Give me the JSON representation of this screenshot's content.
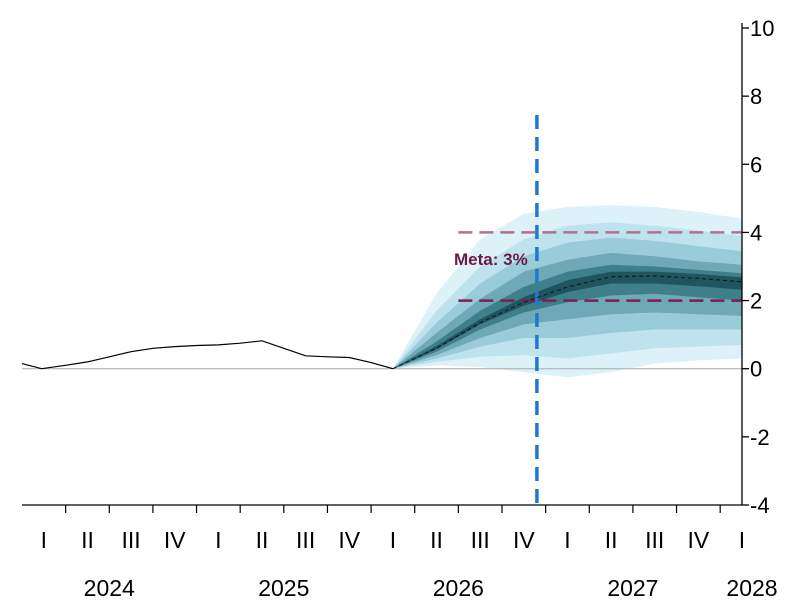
{
  "chart_data": {
    "type": "line",
    "title": "",
    "xlabel": "",
    "ylabel": "",
    "ylim": [
      -4,
      10
    ],
    "yticks": [
      -4,
      -2,
      0,
      2,
      4,
      6,
      8,
      10
    ],
    "ytick_labels": [
      "-4",
      "-2",
      "0",
      "2",
      "4",
      "6",
      "8",
      "10"
    ],
    "grid": false,
    "quarter_labels": [
      "I",
      "II",
      "III",
      "IV",
      "I",
      "II",
      "III",
      "IV",
      "I",
      "II",
      "III",
      "IV",
      "I",
      "II",
      "III",
      "IV",
      "I"
    ],
    "years": [
      {
        "label": "2024",
        "start": 0
      },
      {
        "label": "2025",
        "start": 4
      },
      {
        "label": "2026",
        "start": 8
      },
      {
        "label": "2027",
        "start": 12
      },
      {
        "label": "2028",
        "start": 16
      }
    ],
    "series": [
      {
        "role": "history",
        "x": [
          -0.5,
          -0.05,
          0.5,
          1.0,
          1.5,
          2.0,
          2.5,
          3.0,
          3.5,
          4.0,
          4.5,
          5.0,
          5.5,
          6.0,
          6.5,
          7.0,
          7.5,
          8.0
        ],
        "y": [
          0.15,
          0.0,
          0.1,
          0.2,
          0.35,
          0.5,
          0.6,
          0.65,
          0.68,
          0.7,
          0.75,
          0.82,
          0.6,
          0.38,
          0.35,
          0.33,
          0.18,
          0.0
        ],
        "color": "#000000"
      },
      {
        "role": "forecast-central",
        "x": [
          8.0,
          9.0,
          10.0,
          11.0,
          12.0,
          13.0,
          14.0,
          15.0,
          16.0
        ],
        "y": [
          0.0,
          0.6,
          1.35,
          1.95,
          2.4,
          2.7,
          2.72,
          2.65,
          2.55
        ],
        "color": "#1a1a1a"
      }
    ],
    "fan_chart": {
      "x": [
        8.0,
        9.0,
        10.0,
        11.0,
        12.0,
        13.0,
        14.0,
        15.0,
        16.0
      ],
      "bands": [
        {
          "lower": [
            0,
            0.1,
            0.05,
            -0.1,
            -0.25,
            -0.1,
            0.15,
            0.25,
            0.3
          ],
          "upper": [
            0,
            2.2,
            3.8,
            4.55,
            4.75,
            4.8,
            4.75,
            4.6,
            4.4
          ],
          "color": "#dcf1f8"
        },
        {
          "lower": [
            0,
            0.2,
            0.35,
            0.4,
            0.3,
            0.45,
            0.6,
            0.65,
            0.7
          ],
          "upper": [
            0,
            1.7,
            3.0,
            3.8,
            4.2,
            4.3,
            4.2,
            4.05,
            3.9
          ],
          "color": "#bfe3ee"
        },
        {
          "lower": [
            0,
            0.3,
            0.65,
            0.9,
            0.9,
            1.05,
            1.15,
            1.15,
            1.15
          ],
          "upper": [
            0,
            1.35,
            2.5,
            3.3,
            3.7,
            3.85,
            3.75,
            3.6,
            3.45
          ],
          "color": "#99ccd8"
        },
        {
          "lower": [
            0,
            0.4,
            0.9,
            1.3,
            1.45,
            1.6,
            1.65,
            1.6,
            1.55
          ],
          "upper": [
            0,
            1.05,
            2.05,
            2.85,
            3.2,
            3.4,
            3.3,
            3.15,
            3.05
          ],
          "color": "#6fa9b5"
        },
        {
          "lower": [
            0,
            0.5,
            1.15,
            1.65,
            1.95,
            2.15,
            2.2,
            2.1,
            2.0
          ],
          "upper": [
            0,
            0.8,
            1.7,
            2.4,
            2.85,
            3.05,
            3.0,
            2.9,
            2.8
          ],
          "color": "#3f7f89"
        },
        {
          "lower": [
            0,
            0.57,
            1.3,
            1.85,
            2.25,
            2.5,
            2.5,
            2.42,
            2.32
          ],
          "upper": [
            0,
            0.67,
            1.45,
            2.1,
            2.6,
            2.85,
            2.85,
            2.78,
            2.68
          ],
          "color": "#1e5660"
        }
      ]
    },
    "reference_lines": [
      {
        "orientation": "horizontal",
        "y": 4,
        "x_from": 9.5,
        "x_to": 16,
        "style": "dashed",
        "color": "#b07090"
      },
      {
        "orientation": "horizontal",
        "y": 2,
        "x_from": 9.5,
        "x_to": 16,
        "style": "dashed",
        "color": "#7a2050"
      },
      {
        "orientation": "horizontal",
        "y": 0,
        "x_from": -0.5,
        "x_to": 16,
        "style": "solid",
        "color": "#aaaaaa"
      },
      {
        "orientation": "vertical",
        "x": 11.3,
        "style": "dashed",
        "color": "#1f78d4"
      }
    ],
    "annotations": [
      {
        "text": "Meta: 3%",
        "x": 9.4,
        "y": 3.05,
        "color": "#6b1a45"
      }
    ]
  }
}
